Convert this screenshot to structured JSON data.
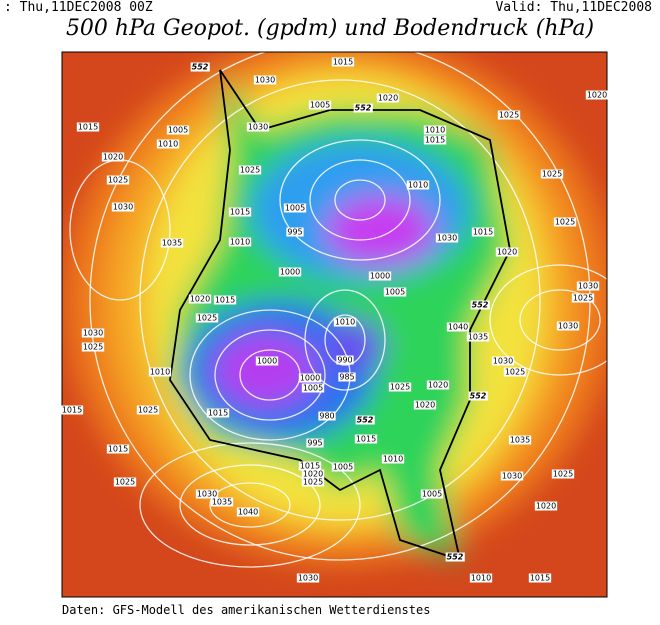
{
  "header": {
    "run": ": Thu,11DEC2008 00Z",
    "valid": "Valid: Thu,11DEC2008",
    "title": "500 hPa Geopot. (gpdm) und Bodendruck (hPa)"
  },
  "footer": {
    "source": "Daten: GFS-Modell des amerikanischen Wetterdienstes"
  },
  "map": {
    "contour_labels": [
      1030,
      1015,
      1005,
      1020,
      1025,
      1020,
      1015,
      1005,
      1010,
      1030,
      1010,
      1015,
      1020,
      1025,
      1025,
      1010,
      1025,
      1030,
      1005,
      1015,
      1030,
      1015,
      1025,
      1035,
      1010,
      995,
      1020,
      1000,
      1000,
      1005,
      1015,
      1020,
      1030,
      1025,
      1025,
      1040,
      1010,
      1030,
      1030,
      1025,
      1035,
      1000,
      990,
      1010,
      1030,
      1025,
      1000,
      1005,
      985,
      1025,
      1020,
      1015,
      1025,
      1015,
      1020,
      980,
      1015,
      995,
      1015,
      1035,
      1010,
      1015,
      1020,
      1025,
      1005,
      1030,
      1025,
      1025,
      1030,
      1035,
      1040,
      1005,
      1020,
      1030,
      1010,
      1015
    ],
    "height_labels": [
      552,
      552,
      552,
      552,
      552,
      552
    ]
  }
}
